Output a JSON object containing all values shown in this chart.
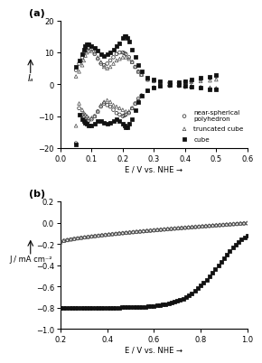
{
  "panel_a": {
    "xlabel": "E / V vs. NHE →",
    "ylabel": "Iₐ",
    "xlim": [
      0.0,
      0.6
    ],
    "ylim": [
      -20,
      20
    ],
    "yticks": [
      -20,
      -10,
      0,
      10,
      20
    ],
    "xticks": [
      0.0,
      0.1,
      0.2,
      0.3,
      0.4,
      0.5,
      0.6
    ],
    "legend": {
      "near_spherical": "near-spherical\npolyhedron",
      "truncated_cube": "truncated cube",
      "cube": "cube"
    }
  },
  "panel_b": {
    "xlabel": "E / V vs. NHE →",
    "ylabel": "J / mA cm⁻²",
    "xlim": [
      0.2,
      1.0
    ],
    "ylim": [
      -1.0,
      0.2
    ],
    "yticks": [
      -1.0,
      -0.8,
      -0.6,
      -0.4,
      -0.2,
      0.0,
      0.2
    ],
    "xticks": [
      0.2,
      0.4,
      0.6,
      0.8,
      1.0
    ]
  }
}
